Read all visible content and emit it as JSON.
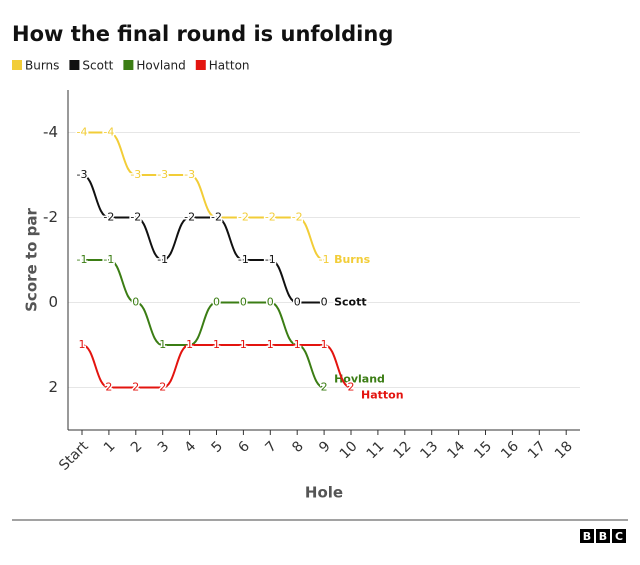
{
  "chart_data": {
    "type": "line",
    "title": "How the final round is unfolding",
    "y_label": "Score to par",
    "x_label": "Hole",
    "categories": [
      "Start",
      "1",
      "2",
      "3",
      "4",
      "5",
      "6",
      "7",
      "8",
      "9",
      "10",
      "11",
      "12",
      "13",
      "14",
      "15",
      "16",
      "17",
      "18"
    ],
    "series": [
      {
        "name": "Burns",
        "color": "#f2cd38",
        "values": [
          -4,
          -4,
          -3,
          -3,
          -3,
          -2,
          -2,
          -2,
          -2,
          -1,
          null,
          null,
          null,
          null,
          null,
          null,
          null,
          null,
          null
        ]
      },
      {
        "name": "Scott",
        "color": "#111111",
        "values": [
          -3,
          -2,
          -2,
          -1,
          -2,
          -2,
          -1,
          -1,
          0,
          0,
          null,
          null,
          null,
          null,
          null,
          null,
          null,
          null,
          null
        ]
      },
      {
        "name": "Hovland",
        "color": "#3b7d14",
        "values": [
          -1,
          -1,
          0,
          1,
          1,
          0,
          0,
          0,
          1,
          2,
          null,
          null,
          null,
          null,
          null,
          null,
          null,
          null,
          null
        ]
      },
      {
        "name": "Hatton",
        "color": "#e3140f",
        "values": [
          1,
          2,
          2,
          2,
          1,
          1,
          1,
          1,
          1,
          1,
          2,
          null,
          null,
          null,
          null,
          null,
          null,
          null,
          null
        ]
      }
    ],
    "ylim": [
      -5,
      3
    ],
    "y_inverted": true,
    "yticks": [
      -4,
      -2,
      0,
      2
    ],
    "grid": true,
    "legend": "top-left",
    "logo": [
      "B",
      "B",
      "C"
    ]
  }
}
